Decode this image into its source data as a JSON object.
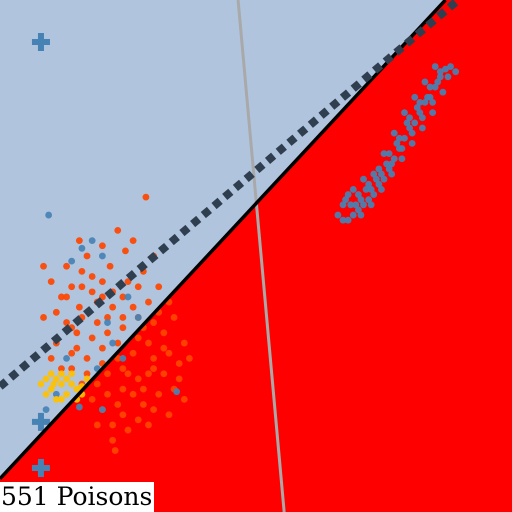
{
  "caption": "551 Poisons",
  "chart_data": {
    "type": "scatter",
    "xlim": [
      0,
      1
    ],
    "ylim": [
      0,
      1
    ],
    "grid": false,
    "legend": "none",
    "colors": {
      "region_upper": "#b0c4de",
      "region_lower": "#ff0000",
      "class_blue": "#4682b4",
      "class_orange": "#ff4500",
      "class_yellow": "#ffc000",
      "decision_boundary": "#000000",
      "dotted_boundary": "#2f3f4f",
      "gray_boundary": "#a9a9a9"
    },
    "regions": [
      {
        "name": "upper",
        "color_key": "region_upper",
        "polygon": [
          [
            0,
            0.065
          ],
          [
            0,
            1
          ],
          [
            0.87,
            1
          ]
        ]
      },
      {
        "name": "lower",
        "color_key": "region_lower",
        "polygon": [
          [
            0,
            0
          ],
          [
            0,
            0.065
          ],
          [
            0.87,
            1
          ],
          [
            1,
            1
          ],
          [
            1,
            0
          ]
        ]
      }
    ],
    "lines": [
      {
        "name": "decision-boundary",
        "color_key": "decision_boundary",
        "style": "solid",
        "points": [
          [
            0,
            0.065
          ],
          [
            0.87,
            1
          ]
        ]
      },
      {
        "name": "dotted-boundary",
        "color_key": "dotted_boundary",
        "style": "dotted",
        "points": [
          [
            0,
            0.245
          ],
          [
            0.895,
            1
          ]
        ]
      },
      {
        "name": "gray-boundary",
        "color_key": "gray_boundary",
        "style": "solid",
        "points": [
          [
            0.465,
            1
          ],
          [
            0.555,
            0
          ]
        ]
      }
    ],
    "series": [
      {
        "color_key": "class_orange",
        "marker": "circle",
        "points": [
          [
            0.155,
            0.53
          ],
          [
            0.17,
            0.5
          ],
          [
            0.2,
            0.52
          ],
          [
            0.23,
            0.55
          ],
          [
            0.26,
            0.53
          ],
          [
            0.285,
            0.615
          ],
          [
            0.245,
            0.51
          ],
          [
            0.215,
            0.48
          ],
          [
            0.18,
            0.46
          ],
          [
            0.14,
            0.44
          ],
          [
            0.12,
            0.42
          ],
          [
            0.155,
            0.4
          ],
          [
            0.19,
            0.41
          ],
          [
            0.22,
            0.43
          ],
          [
            0.25,
            0.45
          ],
          [
            0.28,
            0.47
          ],
          [
            0.3,
            0.5
          ],
          [
            0.31,
            0.44
          ],
          [
            0.29,
            0.41
          ],
          [
            0.27,
            0.38
          ],
          [
            0.24,
            0.36
          ],
          [
            0.21,
            0.35
          ],
          [
            0.18,
            0.34
          ],
          [
            0.15,
            0.35
          ],
          [
            0.13,
            0.37
          ],
          [
            0.11,
            0.33
          ],
          [
            0.14,
            0.31
          ],
          [
            0.17,
            0.3
          ],
          [
            0.2,
            0.29
          ],
          [
            0.23,
            0.3
          ],
          [
            0.26,
            0.31
          ],
          [
            0.29,
            0.33
          ],
          [
            0.32,
            0.35
          ],
          [
            0.34,
            0.38
          ],
          [
            0.33,
            0.31
          ],
          [
            0.3,
            0.28
          ],
          [
            0.27,
            0.26
          ],
          [
            0.24,
            0.24
          ],
          [
            0.21,
            0.23
          ],
          [
            0.18,
            0.22
          ],
          [
            0.16,
            0.25
          ],
          [
            0.2,
            0.2
          ],
          [
            0.24,
            0.19
          ],
          [
            0.28,
            0.21
          ],
          [
            0.31,
            0.23
          ],
          [
            0.35,
            0.26
          ],
          [
            0.37,
            0.3
          ],
          [
            0.36,
            0.22
          ],
          [
            0.33,
            0.19
          ],
          [
            0.29,
            0.17
          ],
          [
            0.25,
            0.16
          ],
          [
            0.22,
            0.14
          ],
          [
            0.19,
            0.17
          ],
          [
            0.225,
            0.12
          ],
          [
            0.085,
            0.48
          ],
          [
            0.1,
            0.45
          ],
          [
            0.13,
            0.48
          ],
          [
            0.16,
            0.47
          ],
          [
            0.2,
            0.45
          ],
          [
            0.24,
            0.42
          ],
          [
            0.27,
            0.44
          ],
          [
            0.085,
            0.38
          ],
          [
            0.1,
            0.3
          ],
          [
            0.12,
            0.28
          ],
          [
            0.22,
            0.4
          ],
          [
            0.26,
            0.4
          ],
          [
            0.3,
            0.37
          ],
          [
            0.33,
            0.41
          ],
          [
            0.19,
            0.37
          ],
          [
            0.16,
            0.38
          ],
          [
            0.23,
            0.33
          ],
          [
            0.27,
            0.34
          ],
          [
            0.3,
            0.3
          ],
          [
            0.21,
            0.27
          ],
          [
            0.25,
            0.27
          ],
          [
            0.28,
            0.24
          ],
          [
            0.32,
            0.27
          ],
          [
            0.17,
            0.27
          ],
          [
            0.14,
            0.28
          ],
          [
            0.19,
            0.25
          ],
          [
            0.23,
            0.21
          ],
          [
            0.26,
            0.23
          ],
          [
            0.3,
            0.2
          ],
          [
            0.34,
            0.24
          ],
          [
            0.36,
            0.33
          ],
          [
            0.35,
            0.29
          ],
          [
            0.32,
            0.32
          ],
          [
            0.18,
            0.43
          ],
          [
            0.21,
            0.38
          ],
          [
            0.24,
            0.38
          ],
          [
            0.28,
            0.36
          ],
          [
            0.31,
            0.39
          ],
          [
            0.15,
            0.32
          ],
          [
            0.2,
            0.32
          ],
          [
            0.29,
            0.27
          ],
          [
            0.22,
            0.17
          ],
          [
            0.27,
            0.18
          ],
          [
            0.24,
            0.28
          ],
          [
            0.13,
            0.42
          ],
          [
            0.16,
            0.44
          ],
          [
            0.2,
            0.42
          ],
          [
            0.11,
            0.39
          ],
          [
            0.14,
            0.36
          ]
        ]
      },
      {
        "color_key": "class_blue",
        "marker": "circle",
        "points": [
          [
            0.87,
            0.865
          ],
          [
            0.86,
            0.85
          ],
          [
            0.85,
            0.83
          ],
          [
            0.84,
            0.81
          ],
          [
            0.83,
            0.8
          ],
          [
            0.82,
            0.78
          ],
          [
            0.81,
            0.76
          ],
          [
            0.8,
            0.75
          ],
          [
            0.79,
            0.73
          ],
          [
            0.78,
            0.71
          ],
          [
            0.77,
            0.69
          ],
          [
            0.76,
            0.67
          ],
          [
            0.75,
            0.65
          ],
          [
            0.74,
            0.64
          ],
          [
            0.73,
            0.62
          ],
          [
            0.72,
            0.61
          ],
          [
            0.71,
            0.6
          ],
          [
            0.7,
            0.59
          ],
          [
            0.69,
            0.58
          ],
          [
            0.68,
            0.57
          ],
          [
            0.67,
            0.57
          ],
          [
            0.685,
            0.6
          ],
          [
            0.7,
            0.62
          ],
          [
            0.72,
            0.64
          ],
          [
            0.74,
            0.67
          ],
          [
            0.76,
            0.7
          ],
          [
            0.78,
            0.73
          ],
          [
            0.8,
            0.77
          ],
          [
            0.82,
            0.8
          ],
          [
            0.84,
            0.83
          ],
          [
            0.86,
            0.86
          ],
          [
            0.88,
            0.87
          ],
          [
            0.855,
            0.84
          ],
          [
            0.835,
            0.81
          ],
          [
            0.815,
            0.79
          ],
          [
            0.795,
            0.76
          ],
          [
            0.775,
            0.72
          ],
          [
            0.755,
            0.68
          ],
          [
            0.735,
            0.65
          ],
          [
            0.715,
            0.63
          ],
          [
            0.695,
            0.6
          ],
          [
            0.705,
            0.58
          ],
          [
            0.725,
            0.6
          ],
          [
            0.745,
            0.63
          ],
          [
            0.765,
            0.66
          ],
          [
            0.785,
            0.69
          ],
          [
            0.805,
            0.72
          ],
          [
            0.825,
            0.75
          ],
          [
            0.845,
            0.78
          ],
          [
            0.865,
            0.82
          ],
          [
            0.71,
            0.65
          ],
          [
            0.69,
            0.63
          ],
          [
            0.675,
            0.61
          ],
          [
            0.73,
            0.66
          ],
          [
            0.75,
            0.7
          ],
          [
            0.77,
            0.74
          ],
          [
            0.79,
            0.78
          ],
          [
            0.81,
            0.81
          ],
          [
            0.83,
            0.84
          ],
          [
            0.85,
            0.87
          ],
          [
            0.875,
            0.85
          ],
          [
            0.89,
            0.86
          ],
          [
            0.66,
            0.58
          ],
          [
            0.67,
            0.6
          ],
          [
            0.68,
            0.62
          ],
          [
            0.845,
            0.8
          ],
          [
            0.825,
            0.77
          ],
          [
            0.805,
            0.74
          ],
          [
            0.785,
            0.71
          ],
          [
            0.765,
            0.68
          ],
          [
            0.745,
            0.66
          ],
          [
            0.725,
            0.63
          ],
          [
            0.705,
            0.61
          ],
          [
            0.18,
            0.53
          ],
          [
            0.2,
            0.5
          ],
          [
            0.16,
            0.515
          ],
          [
            0.25,
            0.42
          ],
          [
            0.21,
            0.37
          ],
          [
            0.27,
            0.38
          ],
          [
            0.13,
            0.3
          ],
          [
            0.19,
            0.28
          ],
          [
            0.24,
            0.3
          ],
          [
            0.22,
            0.33
          ],
          [
            0.09,
            0.2
          ],
          [
            0.11,
            0.23
          ],
          [
            0.155,
            0.205
          ],
          [
            0.2,
            0.2
          ],
          [
            0.345,
            0.235
          ],
          [
            0.095,
            0.58
          ],
          [
            0.14,
            0.49
          ]
        ]
      },
      {
        "color_key": "class_yellow",
        "marker": "circle",
        "points": [
          [
            0.09,
            0.26
          ],
          [
            0.1,
            0.27
          ],
          [
            0.11,
            0.26
          ],
          [
            0.12,
            0.25
          ],
          [
            0.13,
            0.26
          ],
          [
            0.14,
            0.25
          ],
          [
            0.15,
            0.24
          ],
          [
            0.16,
            0.245
          ],
          [
            0.12,
            0.27
          ],
          [
            0.1,
            0.24
          ],
          [
            0.13,
            0.23
          ],
          [
            0.15,
            0.22
          ],
          [
            0.11,
            0.22
          ],
          [
            0.14,
            0.27
          ],
          [
            0.09,
            0.23
          ],
          [
            0.17,
            0.26
          ],
          [
            0.08,
            0.25
          ],
          [
            0.12,
            0.22
          ],
          [
            0.16,
            0.23
          ],
          [
            0.105,
            0.25
          ]
        ]
      },
      {
        "color_key": "class_blue",
        "marker": "plus",
        "points": [
          [
            0.08,
            0.918
          ],
          [
            0.08,
            0.176
          ],
          [
            0.08,
            0.086
          ]
        ]
      }
    ]
  }
}
